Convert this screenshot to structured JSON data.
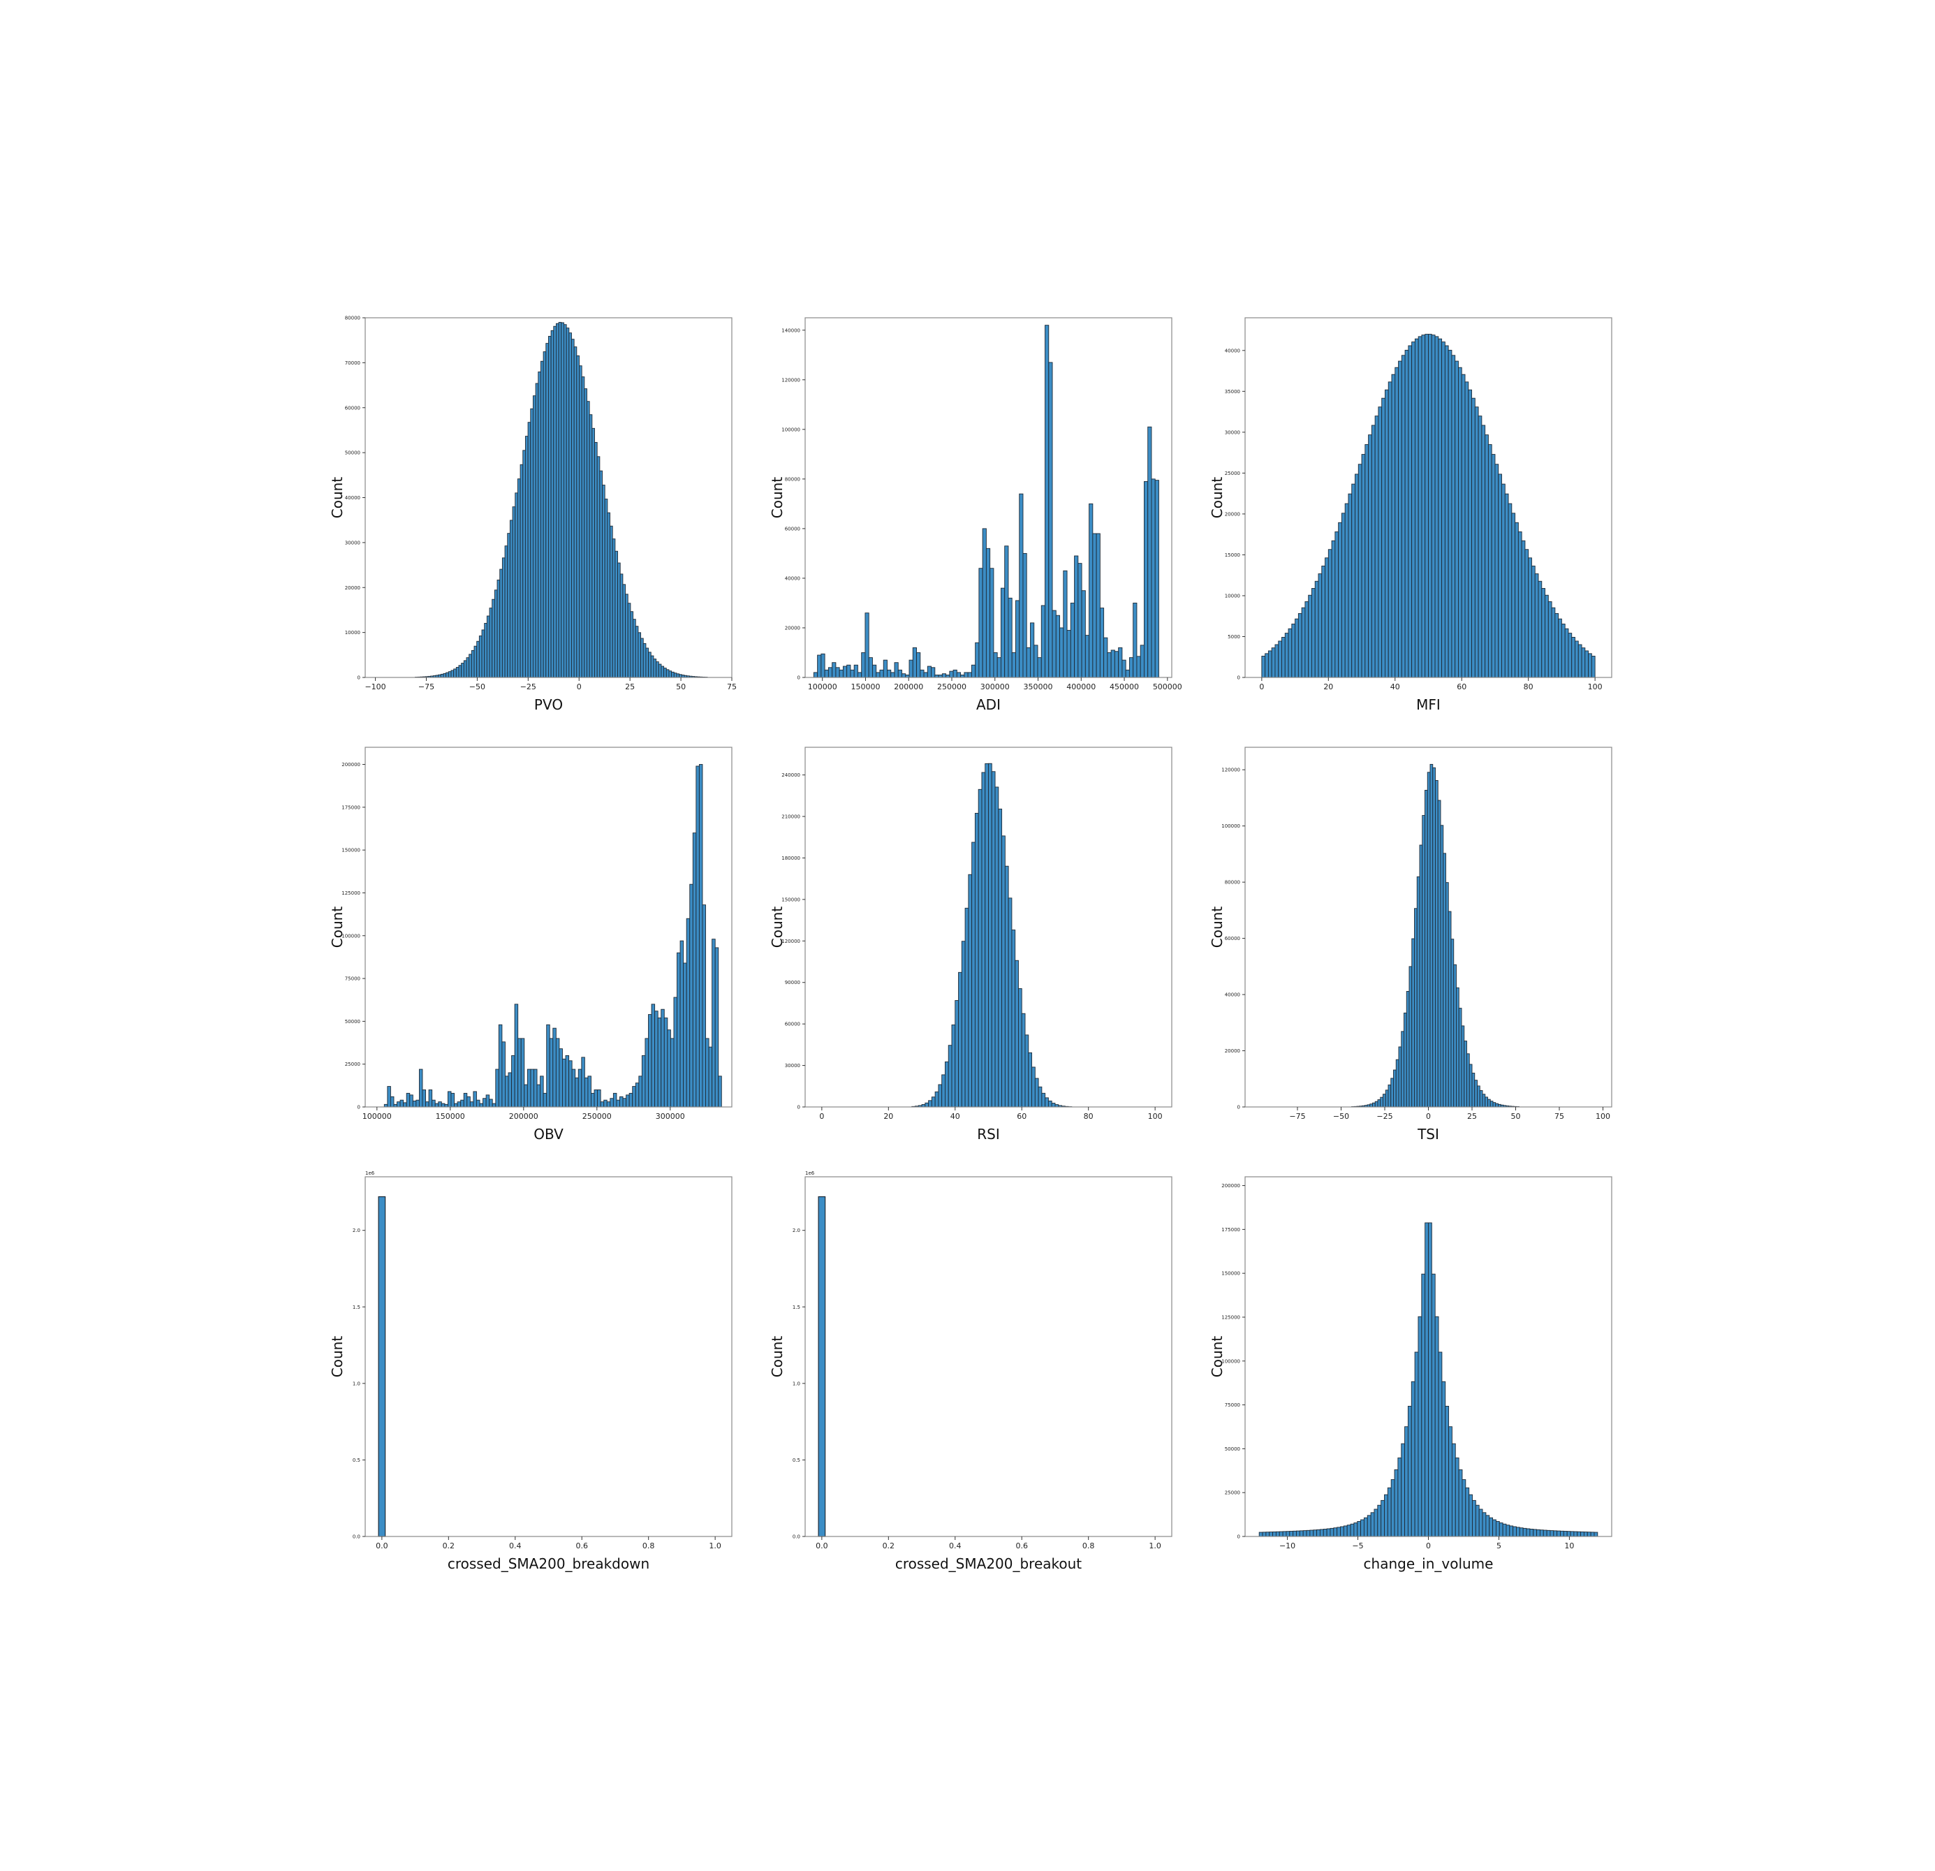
{
  "figure": {
    "bar_color": "#3c8dc5",
    "edge_color": "#1e2a36",
    "frame_color": "#888888"
  },
  "chart_data": [
    {
      "id": "pvo",
      "type": "bar",
      "kind": "histogram-gaussian",
      "xlabel": "PVO",
      "ylabel": "Count",
      "xlim": [
        -105,
        75
      ],
      "ylim": [
        0,
        80000
      ],
      "xticks": [
        -100,
        -75,
        -50,
        -25,
        0,
        25,
        50,
        75
      ],
      "xtick_labels": [
        "−100",
        "−75",
        "−50",
        "−25",
        "0",
        "25",
        "50",
        "75"
      ],
      "yticks": [
        0,
        10000,
        20000,
        30000,
        40000,
        50000,
        60000,
        70000,
        80000
      ],
      "ytick_labels": [
        "0",
        "10000",
        "20000",
        "30000",
        "40000",
        "50000",
        "60000",
        "70000",
        "80000"
      ],
      "range": [
        -88,
        63
      ],
      "bins": 120,
      "peak": 79000,
      "mu": -9,
      "sigma_left": 19,
      "sigma_right": 19
    },
    {
      "id": "adi",
      "type": "bar",
      "kind": "histogram-explicit",
      "xlabel": "ADI",
      "ylabel": "Count",
      "xlim": [
        80000,
        505000
      ],
      "ylim": [
        0,
        145000
      ],
      "xticks": [
        100000,
        150000,
        200000,
        250000,
        300000,
        350000,
        400000,
        450000,
        500000
      ],
      "xtick_labels": [
        "100000",
        "150000",
        "200000",
        "250000",
        "300000",
        "350000",
        "400000",
        "450000",
        "500000"
      ],
      "yticks": [
        0,
        20000,
        40000,
        60000,
        80000,
        100000,
        120000,
        140000
      ],
      "ytick_labels": [
        "0",
        "20000",
        "40000",
        "60000",
        "80000",
        "100000",
        "120000",
        "140000"
      ],
      "range": [
        90000,
        490000
      ],
      "values": [
        2000,
        9000,
        9500,
        3000,
        4000,
        6000,
        4000,
        3000,
        4500,
        5000,
        3000,
        5000,
        2000,
        10000,
        26000,
        8000,
        5000,
        2000,
        3000,
        7000,
        3000,
        2000,
        6000,
        3000,
        1500,
        1000,
        7000,
        12000,
        10000,
        3000,
        2000,
        4500,
        4000,
        1000,
        1000,
        1500,
        1000,
        2500,
        3000,
        2000,
        1000,
        2000,
        2000,
        5000,
        14000,
        44000,
        60000,
        52000,
        44000,
        10000,
        8000,
        36000,
        53000,
        32000,
        10000,
        31000,
        74000,
        50000,
        12000,
        22000,
        13000,
        8000,
        29000,
        142000,
        127000,
        27000,
        25000,
        20000,
        43000,
        19000,
        30000,
        49000,
        46000,
        35000,
        17000,
        70000,
        58000,
        58000,
        28000,
        16000,
        10000,
        11000,
        10500,
        12000,
        7000,
        3000,
        8000,
        30000,
        8500,
        13000,
        79000,
        101000,
        80000,
        79500
      ]
    },
    {
      "id": "mfi",
      "type": "bar",
      "kind": "histogram-gaussian",
      "xlabel": "MFI",
      "ylabel": "Count",
      "xlim": [
        -5,
        105
      ],
      "ylim": [
        0,
        44000
      ],
      "xticks": [
        0,
        20,
        40,
        60,
        80,
        100
      ],
      "xtick_labels": [
        "0",
        "20",
        "40",
        "60",
        "80",
        "100"
      ],
      "yticks": [
        0,
        5000,
        10000,
        15000,
        20000,
        25000,
        30000,
        35000,
        40000
      ],
      "ytick_labels": [
        "0",
        "5000",
        "10000",
        "15000",
        "20000",
        "25000",
        "30000",
        "35000",
        "40000"
      ],
      "range": [
        0,
        100
      ],
      "bins": 100,
      "peak": 42000,
      "mu": 50,
      "sigma_left": 21,
      "sigma_right": 21
    },
    {
      "id": "obv",
      "type": "bar",
      "kind": "histogram-explicit",
      "xlabel": "OBV",
      "ylabel": "Count",
      "xlim": [
        92000,
        342000
      ],
      "ylim": [
        0,
        210000
      ],
      "xticks": [
        100000,
        150000,
        200000,
        250000,
        300000
      ],
      "xtick_labels": [
        "100000",
        "150000",
        "200000",
        "250000",
        "300000"
      ],
      "yticks": [
        0,
        25000,
        50000,
        75000,
        100000,
        125000,
        150000,
        175000,
        200000
      ],
      "ytick_labels": [
        "0",
        "25000",
        "50000",
        "75000",
        "100000",
        "125000",
        "150000",
        "175000",
        "200000"
      ],
      "range": [
        105000,
        335000
      ],
      "values": [
        1500,
        12000,
        6000,
        1500,
        3000,
        4000,
        2500,
        8000,
        7000,
        3500,
        4000,
        22000,
        10000,
        3000,
        10000,
        4000,
        2000,
        3000,
        2000,
        1500,
        9000,
        8000,
        2000,
        3000,
        4000,
        8000,
        6000,
        3000,
        9000,
        4000,
        2000,
        5000,
        7000,
        4500,
        2000,
        22000,
        48000,
        38000,
        18000,
        20000,
        30000,
        60000,
        40000,
        40000,
        13000,
        22000,
        22000,
        22000,
        13000,
        18000,
        8000,
        48000,
        40000,
        46000,
        40000,
        34000,
        28000,
        30000,
        27000,
        22000,
        17000,
        22000,
        29000,
        17000,
        18000,
        8000,
        10000,
        10000,
        3000,
        4000,
        3000,
        5000,
        8000,
        4000,
        6000,
        5000,
        7000,
        8000,
        12000,
        14000,
        18000,
        30000,
        40000,
        54000,
        60000,
        56000,
        52000,
        57000,
        52000,
        45000,
        40000,
        64000,
        90000,
        97000,
        84000,
        110000,
        130000,
        160000,
        199000,
        200000,
        118000,
        40000,
        35000,
        98000,
        93000,
        18000
      ]
    },
    {
      "id": "rsi",
      "type": "bar",
      "kind": "histogram-gaussian",
      "xlabel": "RSI",
      "ylabel": "Count",
      "xlim": [
        -5,
        105
      ],
      "ylim": [
        0,
        260000
      ],
      "xticks": [
        0,
        20,
        40,
        60,
        80,
        100
      ],
      "xtick_labels": [
        "0",
        "20",
        "40",
        "60",
        "80",
        "100"
      ],
      "yticks": [
        0,
        30000,
        60000,
        90000,
        120000,
        150000,
        180000,
        210000,
        240000
      ],
      "ytick_labels": [
        "0",
        "30000",
        "60000",
        "90000",
        "120000",
        "150000",
        "180000",
        "210000",
        "240000"
      ],
      "range": [
        0,
        100
      ],
      "bins": 100,
      "peak": 249000,
      "mu": 50,
      "sigma_left": 6.2,
      "sigma_right": 6.5
    },
    {
      "id": "tsi",
      "type": "bar",
      "kind": "histogram-laplace-gauss",
      "xlabel": "TSI",
      "ylabel": "Count",
      "xlim": [
        -105,
        105
      ],
      "ylim": [
        0,
        128000
      ],
      "xticks": [
        -75,
        -50,
        -25,
        0,
        25,
        50,
        75,
        100
      ],
      "xtick_labels": [
        "−75",
        "−50",
        "−25",
        "0",
        "25",
        "50",
        "75",
        "100"
      ],
      "yticks": [
        0,
        20000,
        40000,
        60000,
        80000,
        100000,
        120000
      ],
      "ytick_labels": [
        "0",
        "20000",
        "40000",
        "60000",
        "80000",
        "100000",
        "120000"
      ],
      "range": [
        -80,
        100
      ],
      "bins": 120,
      "peak": 122000,
      "mu": 2,
      "sigma_left": 11,
      "sigma_right": 12
    },
    {
      "id": "breakdown",
      "type": "bar",
      "kind": "histogram-single",
      "xlabel": "crossed_SMA200_breakdown",
      "ylabel": "Count",
      "xlim": [
        -0.05,
        1.05
      ],
      "ylim": [
        0,
        2350000
      ],
      "offset_label": "1e6",
      "xticks": [
        0,
        0.2,
        0.4,
        0.6,
        0.8,
        1.0
      ],
      "xtick_labels": [
        "0.0",
        "0.2",
        "0.4",
        "0.6",
        "0.8",
        "1.0"
      ],
      "yticks": [
        0,
        500000,
        1000000,
        1500000,
        2000000
      ],
      "ytick_labels": [
        "0.0",
        "0.5",
        "1.0",
        "1.5",
        "2.0"
      ],
      "bar_x": 0,
      "bar_width": 0.02,
      "bar_value": 2220000
    },
    {
      "id": "breakout",
      "type": "bar",
      "kind": "histogram-single",
      "xlabel": "crossed_SMA200_breakout",
      "ylabel": "Count",
      "xlim": [
        -0.05,
        1.05
      ],
      "ylim": [
        0,
        2350000
      ],
      "offset_label": "1e6",
      "xticks": [
        0,
        0.2,
        0.4,
        0.6,
        0.8,
        1.0
      ],
      "xtick_labels": [
        "0.0",
        "0.2",
        "0.4",
        "0.6",
        "0.8",
        "1.0"
      ],
      "yticks": [
        0,
        500000,
        1000000,
        1500000,
        2000000
      ],
      "ytick_labels": [
        "0.0",
        "0.5",
        "1.0",
        "1.5",
        "2.0"
      ],
      "bar_x": 0,
      "bar_width": 0.02,
      "bar_value": 2220000
    },
    {
      "id": "volume",
      "type": "bar",
      "kind": "histogram-laplace",
      "xlabel": "change_in_volume",
      "ylabel": "Count",
      "xlim": [
        -13,
        13
      ],
      "ylim": [
        0,
        205000
      ],
      "xticks": [
        -10,
        -5,
        0,
        5,
        10
      ],
      "xtick_labels": [
        "−10",
        "−5",
        "0",
        "5",
        "10"
      ],
      "yticks": [
        0,
        25000,
        50000,
        75000,
        100000,
        125000,
        150000,
        175000,
        200000
      ],
      "ytick_labels": [
        "0",
        "25000",
        "50000",
        "75000",
        "100000",
        "125000",
        "150000",
        "175000",
        "200000"
      ],
      "range": [
        -12,
        12
      ],
      "bins": 100,
      "peak": 193000,
      "mu": 0,
      "scale": 1.3,
      "floor": 4000
    }
  ]
}
